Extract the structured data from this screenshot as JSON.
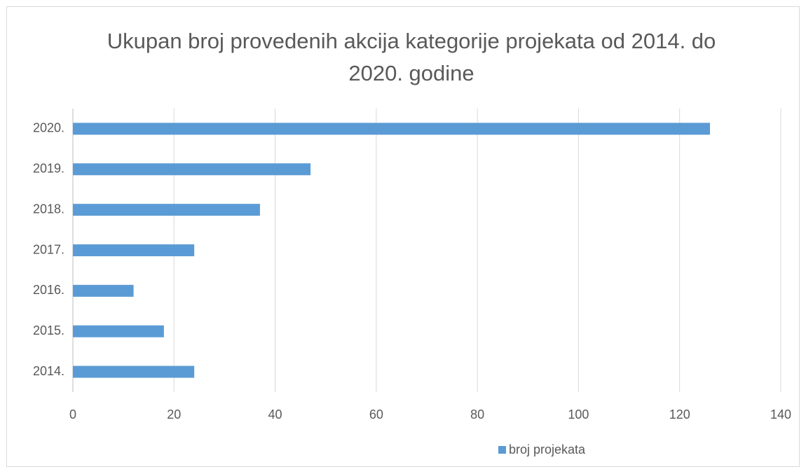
{
  "chart_data": {
    "type": "hbar",
    "title": "Ukupan broj provedenih akcija kategorije projekata od 2014. do 2020. godine",
    "categories": [
      "2014.",
      "2015.",
      "2016.",
      "2017.",
      "2018.",
      "2019.",
      "2020."
    ],
    "series": [
      {
        "name": "broj projekata",
        "color": "#5b9bd5",
        "values": [
          24,
          18,
          12,
          24,
          37,
          47,
          126
        ]
      }
    ],
    "xlim": [
      0,
      140
    ],
    "xticks": [
      0,
      20,
      40,
      60,
      80,
      100,
      120,
      140
    ],
    "grid": true,
    "legend": "bottom"
  }
}
